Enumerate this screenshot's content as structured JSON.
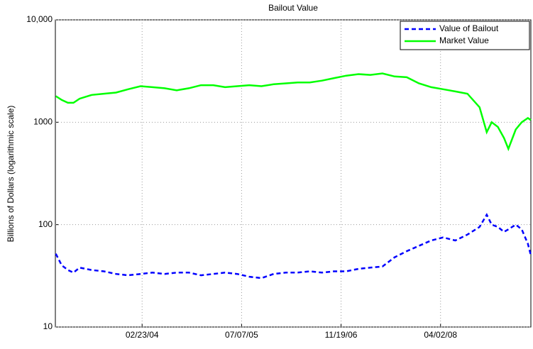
{
  "chart_data": {
    "type": "line",
    "title": "Bailout Value",
    "y_label": "Billions of Dollars (logarithmic scale)",
    "log_y": true,
    "grid": true,
    "legend": "upper right",
    "x": [
      "12/16/02",
      "01/15/03",
      "02/15/03",
      "03/15/03",
      "04/15/03",
      "06/15/03",
      "08/15/03",
      "10/15/03",
      "12/15/03",
      "02/15/04",
      "04/15/04",
      "06/15/04",
      "08/15/04",
      "10/15/04",
      "12/15/04",
      "02/15/05",
      "04/15/05",
      "06/15/05",
      "08/15/05",
      "10/15/05",
      "12/15/05",
      "02/15/06",
      "04/15/06",
      "06/15/06",
      "08/15/06",
      "10/15/06",
      "12/15/06",
      "02/15/07",
      "04/15/07",
      "06/15/07",
      "08/15/07",
      "10/15/07",
      "12/15/07",
      "02/15/08",
      "04/15/08",
      "06/15/08",
      "08/15/08",
      "10/15/08",
      "11/20/08",
      "12/15/08",
      "01/15/09",
      "02/15/09",
      "03/09/09",
      "04/15/09",
      "05/15/09",
      "06/15/09",
      "06/30/09"
    ],
    "xlim": [
      "12/14/02",
      "06/30/09"
    ],
    "xticks": [
      "02/23/04",
      "07/07/05",
      "11/19/06",
      "04/02/08"
    ],
    "ylim": [
      10,
      10000
    ],
    "yticks": [
      {
        "value": 10000,
        "label": "10,000"
      },
      1000,
      100,
      10
    ],
    "series": [
      {
        "name": "Value of Bailout",
        "color": "#0000ff",
        "dashed": true,
        "values": [
          52,
          40,
          36,
          34,
          38,
          36,
          35,
          33,
          32,
          33,
          34,
          33,
          34,
          34,
          32,
          33,
          34,
          33,
          31,
          30,
          33,
          34,
          34,
          35,
          34,
          35,
          35,
          37,
          38,
          39,
          48,
          55,
          62,
          70,
          75,
          70,
          80,
          95,
          125,
          100,
          95,
          85,
          90,
          100,
          90,
          65,
          50
        ]
      },
      {
        "name": "Market Value",
        "color": "#00ff00",
        "dashed": false,
        "values": [
          1800,
          1650,
          1550,
          1550,
          1700,
          1850,
          1900,
          1950,
          2100,
          2250,
          2200,
          2150,
          2050,
          2150,
          2300,
          2300,
          2200,
          2250,
          2300,
          2250,
          2350,
          2400,
          2450,
          2450,
          2550,
          2700,
          2850,
          2950,
          2900,
          3000,
          2800,
          2750,
          2400,
          2200,
          2100,
          2000,
          1900,
          1400,
          800,
          1000,
          900,
          700,
          550,
          850,
          1000,
          1100,
          1050
        ]
      }
    ]
  }
}
